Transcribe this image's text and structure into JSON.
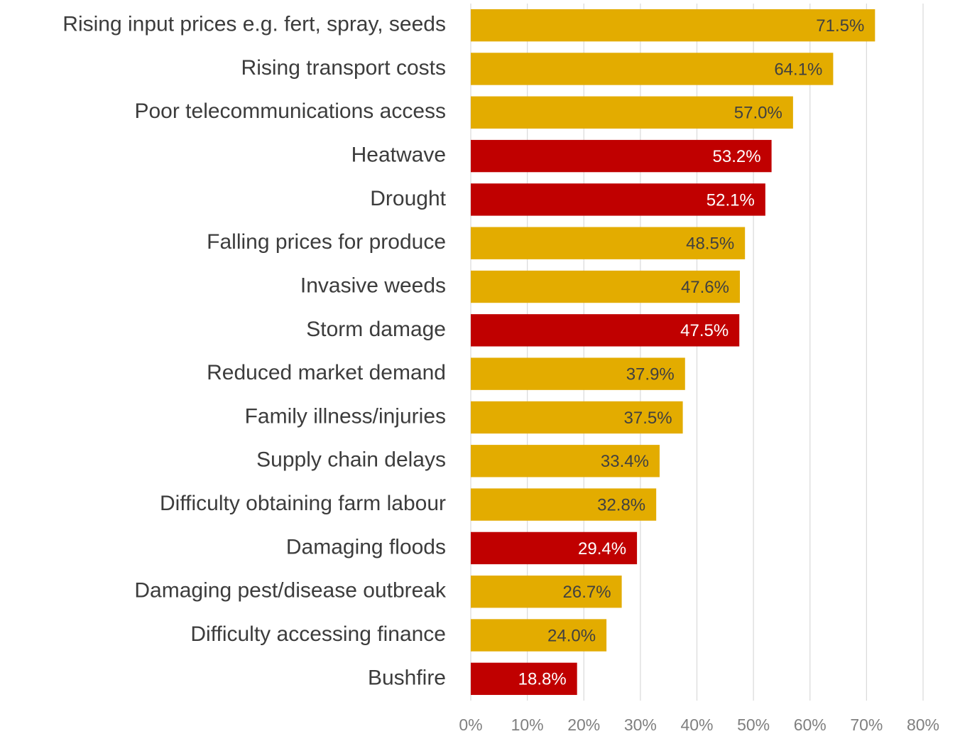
{
  "chart_data": {
    "type": "barh",
    "categories": [
      "Rising input prices e.g. fert, spray, seeds",
      "Rising transport costs",
      "Poor telecommunications access",
      "Heatwave",
      "Drought",
      "Falling prices for produce",
      "Invasive weeds",
      "Storm damage",
      "Reduced market demand",
      "Family illness/injuries",
      "Supply chain delays",
      "Difficulty obtaining farm labour",
      "Damaging floods",
      "Damaging pest/disease outbreak",
      "Difficulty accessing finance",
      "Bushfire"
    ],
    "values": [
      71.5,
      64.1,
      57.0,
      53.2,
      52.1,
      48.5,
      47.6,
      47.5,
      37.9,
      37.5,
      33.4,
      32.8,
      29.4,
      26.7,
      24.0,
      18.8
    ],
    "value_labels": [
      "71.5%",
      "64.1%",
      "57.0%",
      "53.2%",
      "52.1%",
      "48.5%",
      "47.6%",
      "47.5%",
      "37.9%",
      "37.5%",
      "33.4%",
      "32.8%",
      "29.4%",
      "26.7%",
      "24.0%",
      "18.8%"
    ],
    "colors": [
      "#E3AC00",
      "#E3AC00",
      "#E3AC00",
      "#C00000",
      "#C00000",
      "#E3AC00",
      "#E3AC00",
      "#C00000",
      "#E3AC00",
      "#E3AC00",
      "#E3AC00",
      "#E3AC00",
      "#C00000",
      "#E3AC00",
      "#E3AC00",
      "#C00000"
    ],
    "xlim": [
      0,
      80
    ],
    "xticks": [
      {
        "value": 0,
        "label": "0%"
      },
      {
        "value": 10,
        "label": "10%"
      },
      {
        "value": 20,
        "label": "20%"
      },
      {
        "value": 30,
        "label": "30%"
      },
      {
        "value": 40,
        "label": "40%"
      },
      {
        "value": 50,
        "label": "50%"
      },
      {
        "value": 60,
        "label": "60%"
      },
      {
        "value": 70,
        "label": "70%"
      },
      {
        "value": 80,
        "label": "80%"
      }
    ],
    "grid": true
  }
}
